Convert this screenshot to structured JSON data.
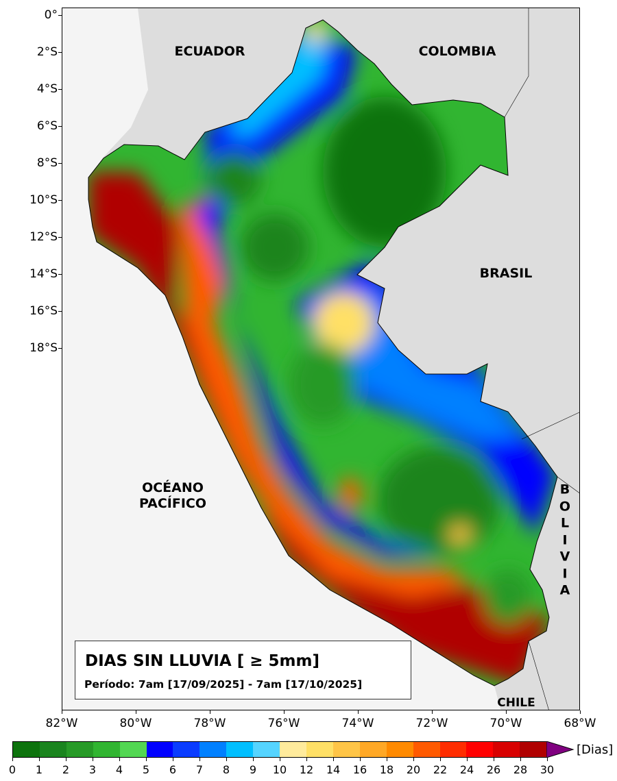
{
  "title": "DIAS SIN LLUVIA [ ≥ 5mm]",
  "period": "Período: 7am [17/09/2025] - 7am [17/10/2025]",
  "labels": {
    "ecuador": "ECUADOR",
    "colombia": "COLOMBIA",
    "brasil": "BRASIL",
    "chile": "CHILE",
    "bolivia": "B\nO\nL\nI\nV\nI\nA",
    "oceano_1": "OCÉANO",
    "oceano_2": "PACÍFICO"
  },
  "y_ticks": [
    "0°",
    "2°S",
    "4°S",
    "6°S",
    "8°S",
    "10°S",
    "12°S",
    "14°S",
    "16°S",
    "18°S"
  ],
  "x_ticks": [
    "82°W",
    "80°W",
    "78°W",
    "76°W",
    "74°W",
    "72°W",
    "70°W",
    "68°W"
  ],
  "colorbar": {
    "unit": "[Dias]",
    "ticks": [
      "0",
      "1",
      "2",
      "3",
      "4",
      "5",
      "6",
      "7",
      "8",
      "9",
      "10",
      "12",
      "14",
      "16",
      "18",
      "20",
      "22",
      "24",
      "26",
      "28",
      "30"
    ],
    "colors": [
      "#0d730d",
      "#1a841e",
      "#279a27",
      "#31b531",
      "#52d752",
      "#0000ff",
      "#0a3cff",
      "#0080ff",
      "#00bfff",
      "#55d4ff",
      "#ffeb9c",
      "#ffe066",
      "#ffc547",
      "#ffa826",
      "#ff8a00",
      "#ff5a00",
      "#ff2d00",
      "#ff0000",
      "#d80000",
      "#b00000"
    ],
    "extend_color": "#800080"
  }
}
